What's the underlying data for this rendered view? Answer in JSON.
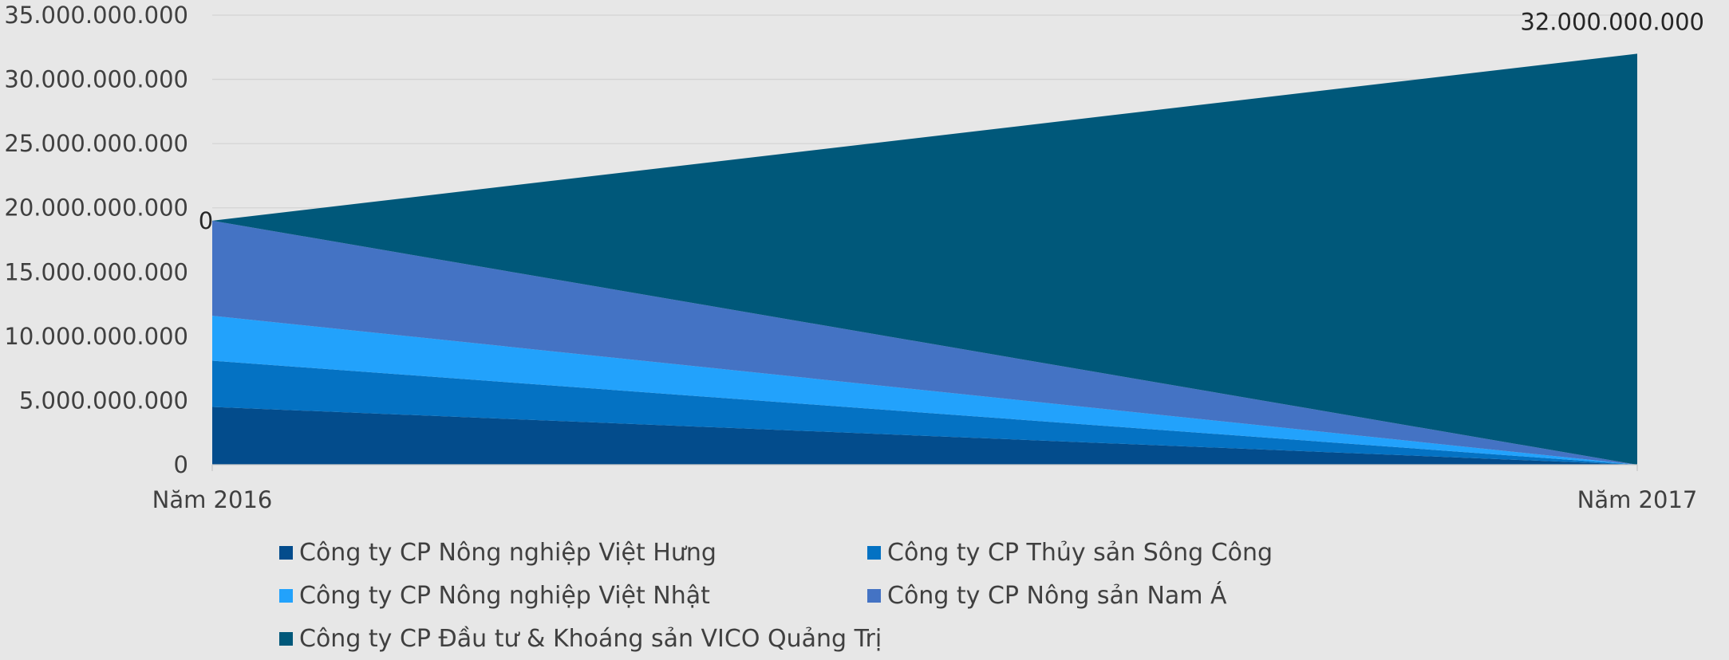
{
  "chart_data": {
    "type": "area",
    "stacked": true,
    "categories": [
      "Năm 2016",
      "Năm 2017"
    ],
    "ylim": [
      0,
      35000000000
    ],
    "yticks": [
      0,
      5000000000,
      10000000000,
      15000000000,
      20000000000,
      25000000000,
      30000000000,
      35000000000
    ],
    "ytick_labels": [
      "0",
      "5.000.000.000",
      "10.000.000.000",
      "15.000.000.000",
      "20.000.000.000",
      "25.000.000.000",
      "30.000.000.000",
      "35.000.000.000"
    ],
    "grid": true,
    "legend_position": "bottom",
    "series": [
      {
        "name": "Công ty CP Nông nghiệp Việt Hưng",
        "values": [
          4500000000,
          0
        ],
        "color": "#034c8c"
      },
      {
        "name": "Công ty CP Thủy sản Sông Công",
        "values": [
          3600000000,
          0
        ],
        "color": "#0472c3"
      },
      {
        "name": "Công ty CP Nông nghiệp Việt Nhật",
        "values": [
          3500000000,
          0
        ],
        "color": "#22a2fc"
      },
      {
        "name": "Công ty CP Nông sản Nam Á",
        "values": [
          7400000000,
          0
        ],
        "color": "#4473c4"
      },
      {
        "name": "Công ty CP Đầu tư & Khoáng sản VICO Quảng Trị",
        "values": [
          0,
          32000000000
        ],
        "color": "#00587a"
      }
    ],
    "data_labels": [
      {
        "series": 4,
        "point": 0,
        "text": "0"
      },
      {
        "series": 4,
        "point": 1,
        "text": "32.000.000.000"
      }
    ]
  }
}
